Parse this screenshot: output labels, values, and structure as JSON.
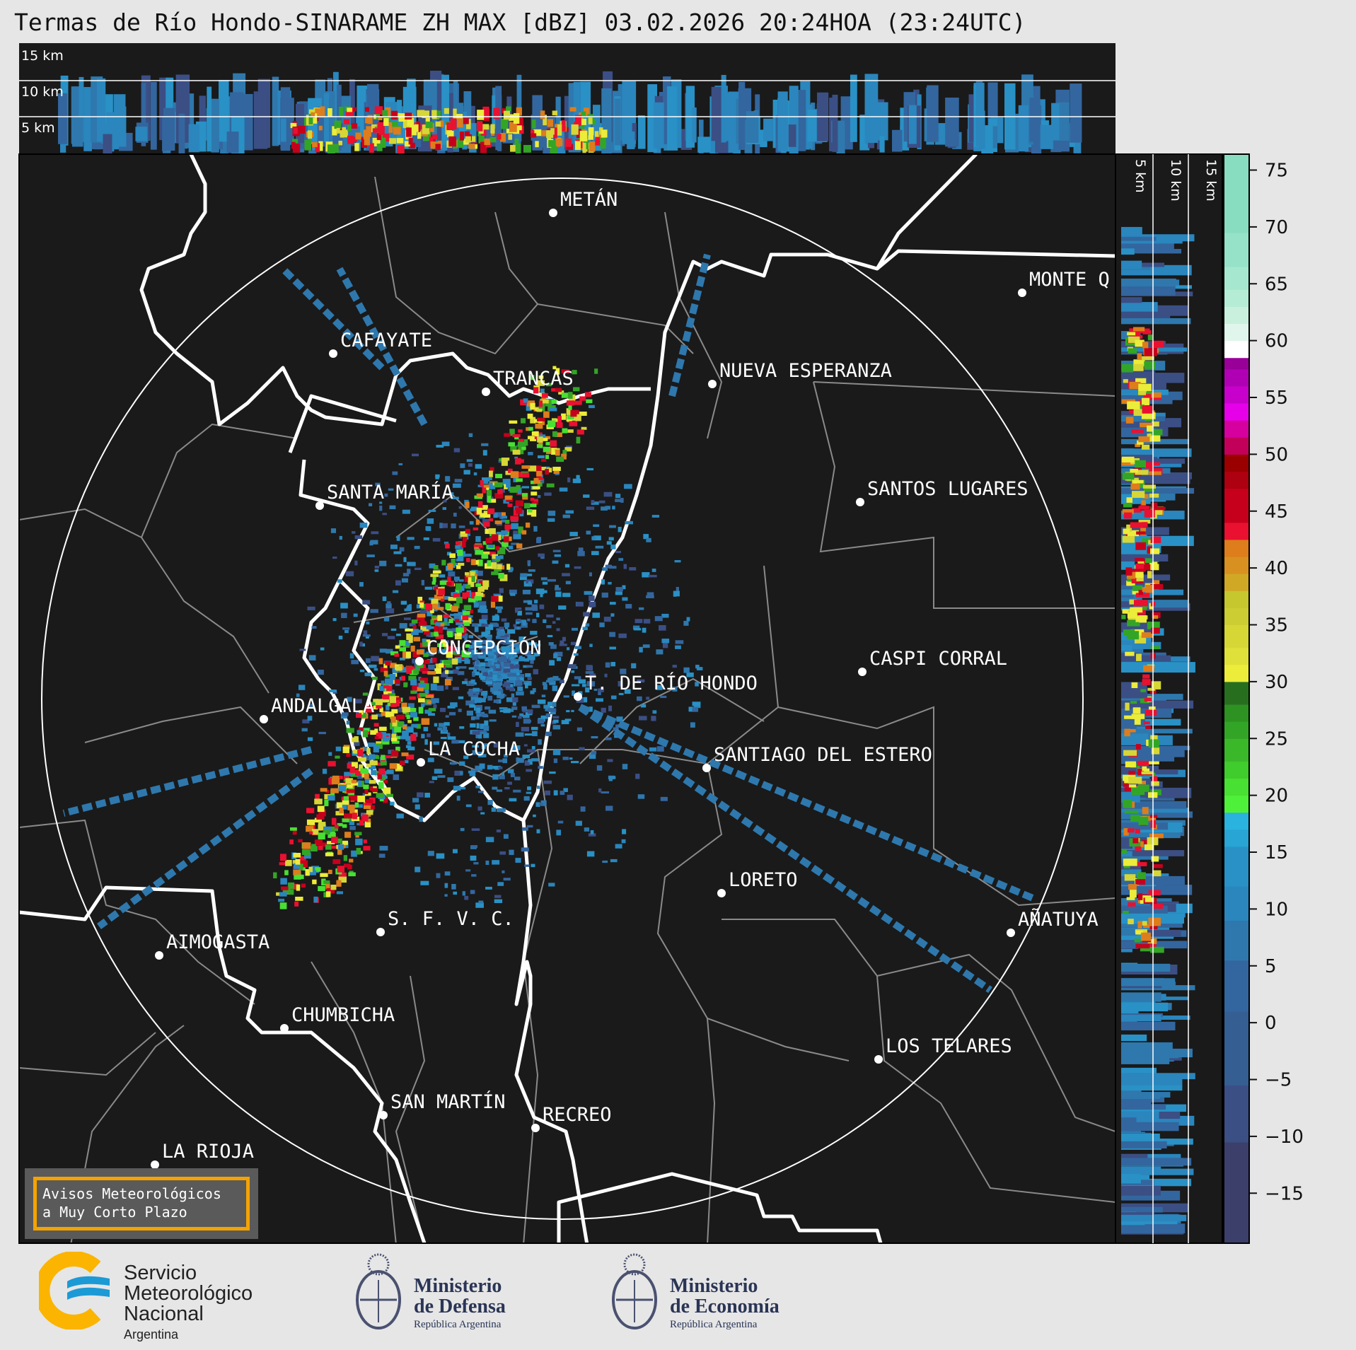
{
  "title": "Termas de Río Hondo-SINARAME ZH MAX [dBZ] 03.02.2026 20:24HOA (23:24UTC)",
  "top_section": {
    "levels": [
      "15 km",
      "10 km",
      "5 km"
    ]
  },
  "side_section": {
    "levels": [
      "5 km",
      "10 km",
      "15 km"
    ]
  },
  "cities": [
    {
      "name": "METÁN"
    },
    {
      "name": "MONTE Q"
    },
    {
      "name": "CAFAYATE"
    },
    {
      "name": "TRANCAS"
    },
    {
      "name": "NUEVA ESPERANZA"
    },
    {
      "name": "SANTA MARÍA"
    },
    {
      "name": "SANTOS LUGARES"
    },
    {
      "name": "CONCEPCIÓN"
    },
    {
      "name": "CASPI CORRAL"
    },
    {
      "name": "T. DE RÍO HONDO"
    },
    {
      "name": "ANDALGALÁ"
    },
    {
      "name": "LA COCHA"
    },
    {
      "name": "SANTIAGO DEL ESTERO"
    },
    {
      "name": "LORETO"
    },
    {
      "name": "AÑATUYA"
    },
    {
      "name": "S. F. V. C."
    },
    {
      "name": "AIMOGASTA"
    },
    {
      "name": "CHUMBICHA"
    },
    {
      "name": "LOS TELARES"
    },
    {
      "name": "SAN MARTÍN"
    },
    {
      "name": "RECREO"
    },
    {
      "name": "LA RIOJA"
    }
  ],
  "colorbar": {
    "unit": "dBZ",
    "range": [
      -19.4,
      76.4
    ],
    "ticks": [
      "75",
      "70",
      "65",
      "60",
      "55",
      "50",
      "45",
      "40",
      "35",
      "30",
      "25",
      "20",
      "15",
      "10",
      "5",
      "0",
      "−5",
      "−10",
      "−15"
    ],
    "stops": [
      {
        "from": -19.4,
        "color": "#3d3f6b"
      },
      {
        "from": -10.5,
        "color": "#3b4f85"
      },
      {
        "from": -5.5,
        "color": "#355e92"
      },
      {
        "from": 1,
        "color": "#33669e"
      },
      {
        "from": 5.5,
        "color": "#2e78ad"
      },
      {
        "from": 9,
        "color": "#2a86bd"
      },
      {
        "from": 12,
        "color": "#2991c5"
      },
      {
        "from": 15.5,
        "color": "#28a4d5"
      },
      {
        "from": 17,
        "color": "#2ab3de"
      },
      {
        "from": 18.5,
        "color": "#4ef03a"
      },
      {
        "from": 20,
        "color": "#48e032"
      },
      {
        "from": 21.5,
        "color": "#40cc2c"
      },
      {
        "from": 23,
        "color": "#3ab82a"
      },
      {
        "from": 25,
        "color": "#33a526"
      },
      {
        "from": 26.5,
        "color": "#2e9222"
      },
      {
        "from": 28,
        "color": "#276f1f"
      },
      {
        "from": 30,
        "color": "#ecec3a"
      },
      {
        "from": 31.5,
        "color": "#e0e03a"
      },
      {
        "from": 33,
        "color": "#d6d637"
      },
      {
        "from": 35,
        "color": "#cccc33"
      },
      {
        "from": 36.5,
        "color": "#c6c62f"
      },
      {
        "from": 38,
        "color": "#d0a826"
      },
      {
        "from": 39.5,
        "color": "#d89020"
      },
      {
        "from": 41,
        "color": "#dd7d1c"
      },
      {
        "from": 42.5,
        "color": "#ea1030"
      },
      {
        "from": 44,
        "color": "#c6001c"
      },
      {
        "from": 47,
        "color": "#ad0010"
      },
      {
        "from": 48.5,
        "color": "#9a0000"
      },
      {
        "from": 50,
        "color": "#c2005a"
      },
      {
        "from": 51.5,
        "color": "#d5009e"
      },
      {
        "from": 53,
        "color": "#e600ea"
      },
      {
        "from": 54.5,
        "color": "#c800cc"
      },
      {
        "from": 56,
        "color": "#b000b4"
      },
      {
        "from": 57.5,
        "color": "#980098"
      },
      {
        "from": 58.5,
        "color": "#ffffff"
      },
      {
        "from": 60,
        "color": "#e0f6ec"
      },
      {
        "from": 61.5,
        "color": "#c8f0dc"
      },
      {
        "from": 63,
        "color": "#b5ecd6"
      },
      {
        "from": 64.5,
        "color": "#a5e8cf"
      },
      {
        "from": 66.5,
        "color": "#95e2c8"
      },
      {
        "from": 69.5,
        "color": "#88dcc0"
      }
    ]
  },
  "warning_box": {
    "line1": "Avisos Meteorológicos",
    "line2": "a Muy Corto Plazo",
    "border_color": "#f5a300"
  },
  "logos": {
    "smn": {
      "line1": "Servicio",
      "line2": "Meteorológico",
      "line3": "Nacional",
      "line4": "Argentina"
    },
    "defensa": {
      "line1": "Ministerio",
      "line2": "de Defensa",
      "line3": "República Argentina"
    },
    "economia": {
      "line1": "Ministerio",
      "line2": "de Economía",
      "line3": "República Argentina"
    }
  }
}
